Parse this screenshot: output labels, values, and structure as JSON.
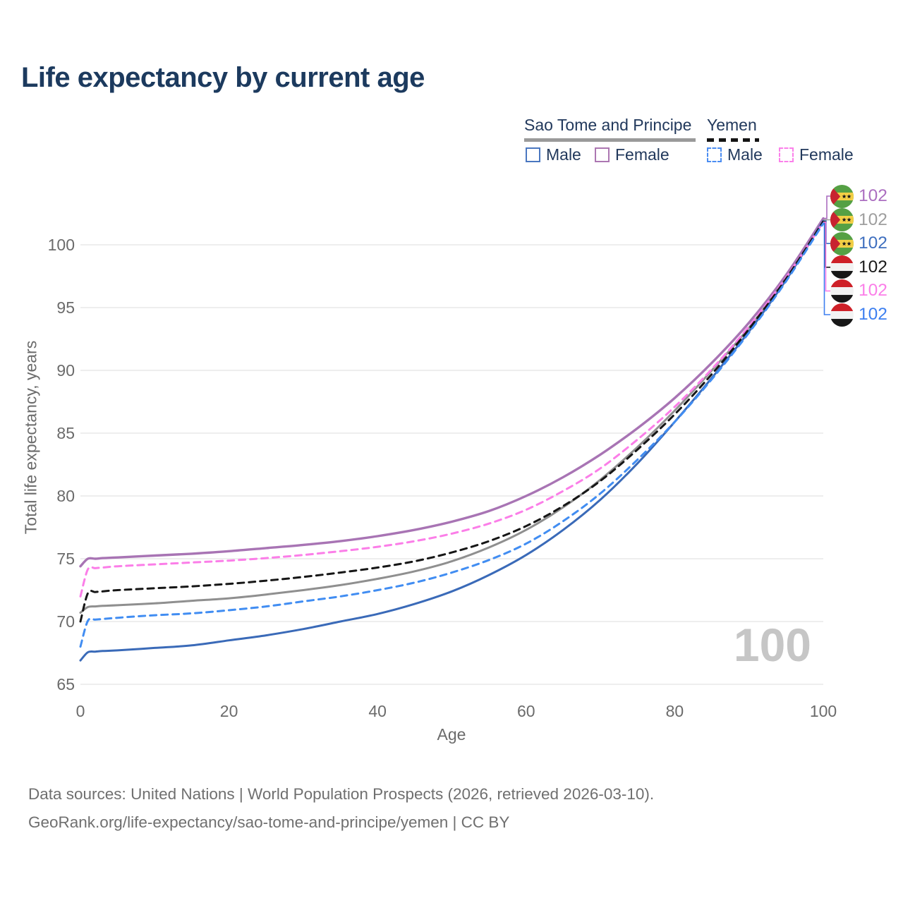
{
  "title": "Life expectancy by current age",
  "legend": {
    "groups": [
      {
        "label": "Sao Tome and Principe",
        "line_style": "solid",
        "underline_color": "#9a9a9a",
        "items": [
          {
            "label": "Male",
            "color": "#4a77c0",
            "dash": false
          },
          {
            "label": "Female",
            "color": "#ac77b2",
            "dash": false
          }
        ]
      },
      {
        "label": "Yemen",
        "line_style": "dashed",
        "underline_color": "#141414",
        "items": [
          {
            "label": "Male",
            "color": "#4b8df2",
            "dash": true
          },
          {
            "label": "Female",
            "color": "#fb80ea",
            "dash": true
          }
        ]
      }
    ]
  },
  "chart_data": {
    "type": "line",
    "title": "Life expectancy by current age",
    "xlabel": "Age",
    "ylabel": "Total life expectancy, years",
    "xlim": [
      0,
      100
    ],
    "ylim": [
      65,
      103
    ],
    "x_ticks": [
      0,
      20,
      40,
      60,
      80,
      100
    ],
    "y_ticks": [
      65,
      70,
      75,
      80,
      85,
      90,
      95,
      100
    ],
    "grid": "horizontal-only",
    "legend_position": "top-right",
    "hover_age_watermark": "100",
    "x": [
      0,
      1,
      2,
      3,
      5,
      10,
      15,
      20,
      25,
      30,
      35,
      40,
      45,
      50,
      55,
      60,
      65,
      70,
      75,
      80,
      85,
      90,
      95,
      100
    ],
    "series": [
      {
        "key": "stp-both",
        "name": "Sao Tome and Principe Both sexes",
        "country": "Sao Tome and Principe",
        "sex": "Both",
        "color": "#8f8f8f",
        "dash": false,
        "width": 3,
        "values": [
          70.7,
          71.15,
          71.2,
          71.25,
          71.3,
          71.45,
          71.65,
          71.85,
          72.15,
          72.5,
          72.9,
          73.4,
          74.0,
          74.8,
          75.9,
          77.3,
          79.1,
          81.3,
          83.9,
          86.8,
          90.0,
          93.4,
          97.4,
          102.0
        ]
      },
      {
        "key": "stp-female",
        "name": "Sao Tome and Principe Female",
        "country": "Sao Tome and Principe",
        "sex": "Female",
        "color": "#a874b4",
        "dash": false,
        "width": 3.4,
        "values": [
          74.4,
          75.0,
          75.0,
          75.05,
          75.1,
          75.25,
          75.4,
          75.6,
          75.85,
          76.1,
          76.4,
          76.8,
          77.3,
          77.95,
          78.8,
          80.0,
          81.5,
          83.3,
          85.4,
          87.8,
          90.6,
          93.8,
          97.6,
          102.1
        ]
      },
      {
        "key": "stp-male",
        "name": "Sao Tome and Principe Male",
        "country": "Sao Tome and Principe",
        "sex": "Male",
        "color": "#3a6ab8",
        "dash": false,
        "width": 3,
        "values": [
          66.9,
          67.55,
          67.6,
          67.65,
          67.7,
          67.9,
          68.1,
          68.5,
          68.9,
          69.4,
          70.0,
          70.6,
          71.4,
          72.4,
          73.7,
          75.3,
          77.3,
          79.7,
          82.6,
          85.9,
          89.4,
          93.1,
          97.2,
          101.9
        ]
      },
      {
        "key": "yemen-female",
        "name": "Yemen Female",
        "country": "Yemen",
        "sex": "Female",
        "color": "#fb7ee8",
        "dash": true,
        "width": 3,
        "values": [
          72.0,
          74.15,
          74.25,
          74.3,
          74.4,
          74.55,
          74.7,
          74.85,
          75.05,
          75.3,
          75.6,
          75.95,
          76.4,
          77.0,
          77.8,
          78.9,
          80.4,
          82.2,
          84.5,
          87.1,
          90.1,
          93.5,
          97.4,
          101.8
        ]
      },
      {
        "key": "yemen-both",
        "name": "Yemen Both sexes",
        "country": "Yemen",
        "sex": "Both",
        "color": "#161616",
        "dash": true,
        "width": 3,
        "values": [
          70.0,
          72.25,
          72.35,
          72.4,
          72.5,
          72.65,
          72.8,
          73.0,
          73.25,
          73.55,
          73.9,
          74.3,
          74.8,
          75.5,
          76.4,
          77.6,
          79.2,
          81.2,
          83.7,
          86.5,
          89.7,
          93.3,
          97.3,
          101.85
        ]
      },
      {
        "key": "yemen-male",
        "name": "Yemen Male",
        "country": "Yemen",
        "sex": "Male",
        "color": "#418df2",
        "dash": true,
        "width": 3,
        "values": [
          68.0,
          70.05,
          70.15,
          70.2,
          70.3,
          70.5,
          70.65,
          70.9,
          71.2,
          71.6,
          72.0,
          72.5,
          73.1,
          73.9,
          74.9,
          76.2,
          78.0,
          80.2,
          82.9,
          85.9,
          89.3,
          93.0,
          97.1,
          101.7
        ]
      }
    ]
  },
  "end_labels": [
    {
      "series_key": "stp-female",
      "flag": "sao-tome-and-principe",
      "value": "102",
      "color": "#ab6ec0"
    },
    {
      "series_key": "stp-both",
      "flag": "sao-tome-and-principe",
      "value": "102",
      "color": "#9e9e9e"
    },
    {
      "series_key": "stp-male",
      "flag": "sao-tome-and-principe",
      "value": "102",
      "color": "#3f6fbf"
    },
    {
      "series_key": "yemen-both",
      "flag": "yemen",
      "value": "102",
      "color": "#1a1a1a"
    },
    {
      "series_key": "yemen-female",
      "flag": "yemen",
      "value": "102",
      "color": "#fb7ee8"
    },
    {
      "series_key": "yemen-male",
      "flag": "yemen",
      "value": "102",
      "color": "#3d7ff0"
    }
  ],
  "footer": {
    "line1": "Data sources: United Nations | World Population Prospects (2026, retrieved 2026-03-10).",
    "line2": "GeoRank.org/life-expectancy/sao-tome-and-principe/yemen | CC BY"
  }
}
